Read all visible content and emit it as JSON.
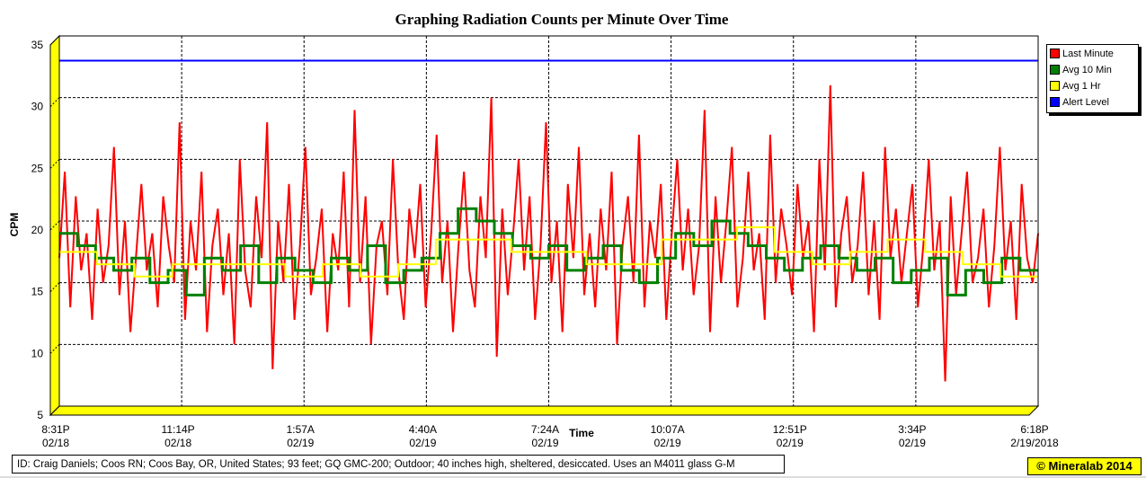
{
  "chart_data": {
    "type": "line",
    "title": "Graphing Radiation Counts per Minute Over Time",
    "xlabel": "Time",
    "ylabel": "CPM",
    "ylim": [
      5,
      35
    ],
    "y_ticks": [
      "5",
      "10",
      "15",
      "20",
      "25",
      "30",
      "35"
    ],
    "x_ticks": [
      {
        "time": "8:31P",
        "date": "02/18"
      },
      {
        "time": "11:14P",
        "date": "02/18"
      },
      {
        "time": "1:57A",
        "date": "02/19"
      },
      {
        "time": "4:40A",
        "date": "02/19"
      },
      {
        "time": "7:24A",
        "date": "02/19"
      },
      {
        "time": "10:07A",
        "date": "02/19"
      },
      {
        "time": "12:51P",
        "date": "02/19"
      },
      {
        "time": "3:34P",
        "date": "02/19"
      },
      {
        "time": "6:18P",
        "date": "2/19/2018"
      }
    ],
    "grid": true,
    "legend_placement": "right",
    "series": [
      {
        "name": "Last Minute",
        "color": "#ff0000",
        "values": [
          17,
          24,
          13,
          22,
          16,
          19,
          12,
          21,
          15,
          18,
          26,
          14,
          20,
          11,
          17,
          23,
          16,
          19,
          13,
          22,
          18,
          15,
          28,
          12,
          20,
          16,
          24,
          11,
          18,
          21,
          14,
          19,
          10,
          25,
          16,
          13,
          22,
          17,
          28,
          8,
          20,
          15,
          23,
          12,
          18,
          26,
          14,
          17,
          21,
          11,
          19,
          16,
          24,
          13,
          29,
          15,
          22,
          10,
          18,
          20,
          14,
          25,
          16,
          12,
          21,
          17,
          23,
          13,
          19,
          27,
          15,
          20,
          11,
          18,
          24,
          16,
          13,
          22,
          17,
          30,
          9,
          21,
          14,
          19,
          25,
          16,
          22,
          12,
          18,
          28,
          15,
          20,
          11,
          23,
          17,
          26,
          14,
          19,
          13,
          21,
          16,
          24,
          10,
          18,
          22,
          15,
          27,
          13,
          20,
          17,
          23,
          12,
          19,
          25,
          16,
          21,
          14,
          18,
          29,
          11,
          22,
          15,
          20,
          26,
          13,
          17,
          24,
          16,
          19,
          12,
          27,
          15,
          21,
          18,
          14,
          23,
          17,
          20,
          11,
          25,
          16,
          31,
          13,
          19,
          22,
          15,
          18,
          24,
          14,
          20,
          12,
          26,
          17,
          21,
          15,
          19,
          23,
          13,
          18,
          25,
          16,
          20,
          7,
          22,
          14,
          19,
          24,
          15,
          17,
          21,
          13,
          18,
          26,
          16,
          20,
          12,
          23,
          17,
          15,
          19
        ]
      },
      {
        "name": "Avg 10 Min",
        "color": "#008000",
        "values": [
          19,
          18,
          17,
          16,
          17,
          15,
          16,
          14,
          17,
          16,
          18,
          15,
          17,
          16,
          15,
          17,
          16,
          18,
          15,
          16,
          17,
          19,
          21,
          20,
          19,
          18,
          17,
          18,
          16,
          17,
          18,
          16,
          15,
          17,
          19,
          18,
          20,
          19,
          18,
          17,
          16,
          17,
          18,
          17,
          16,
          17,
          15,
          16,
          17,
          14,
          16,
          15,
          17,
          16
        ]
      },
      {
        "name": "Avg 1 Hr",
        "color": "#ffff00",
        "values": [
          17.5,
          16.5,
          15.5,
          16.5,
          16.5,
          16.5,
          15.5,
          16.5,
          15.5,
          16.5,
          18.5,
          18.5,
          17.5,
          17.5,
          16.5,
          16.5,
          18.5,
          18.5,
          19.5,
          17.5,
          16.5,
          17.5,
          18.5,
          17.5,
          16.5,
          15.5
        ]
      },
      {
        "name": "Alert Level",
        "color": "#0000ff",
        "values": [
          33,
          33
        ]
      }
    ]
  },
  "footer": {
    "station_info": "ID: Craig Daniels; Coos RN; Coos Bay, OR, United States; 93 feet; GQ GMC-200; Outdoor; 40 inches high, sheltered, desiccated. Uses an M4011 glass G-M",
    "copyright": "© Mineralab 2014"
  }
}
